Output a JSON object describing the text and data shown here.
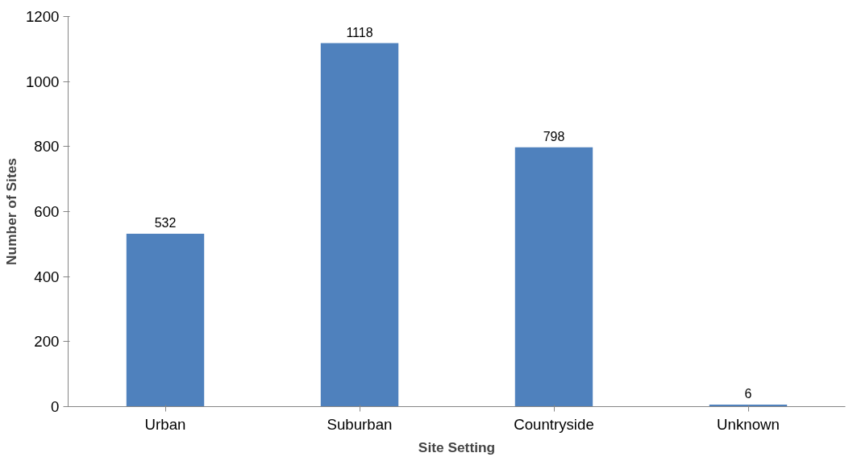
{
  "chart_data": {
    "type": "bar",
    "xlabel": "Site Setting",
    "ylabel": "Number of Sites",
    "categories": [
      "Urban",
      "Suburban",
      "Countryside",
      "Unknown"
    ],
    "values": [
      532,
      1118,
      798,
      6
    ],
    "color": "#4f81bd",
    "ylim": [
      0,
      1200
    ],
    "yticks": [
      0,
      200,
      400,
      600,
      800,
      1000,
      1200
    ],
    "data_labels": true,
    "grid": false
  }
}
